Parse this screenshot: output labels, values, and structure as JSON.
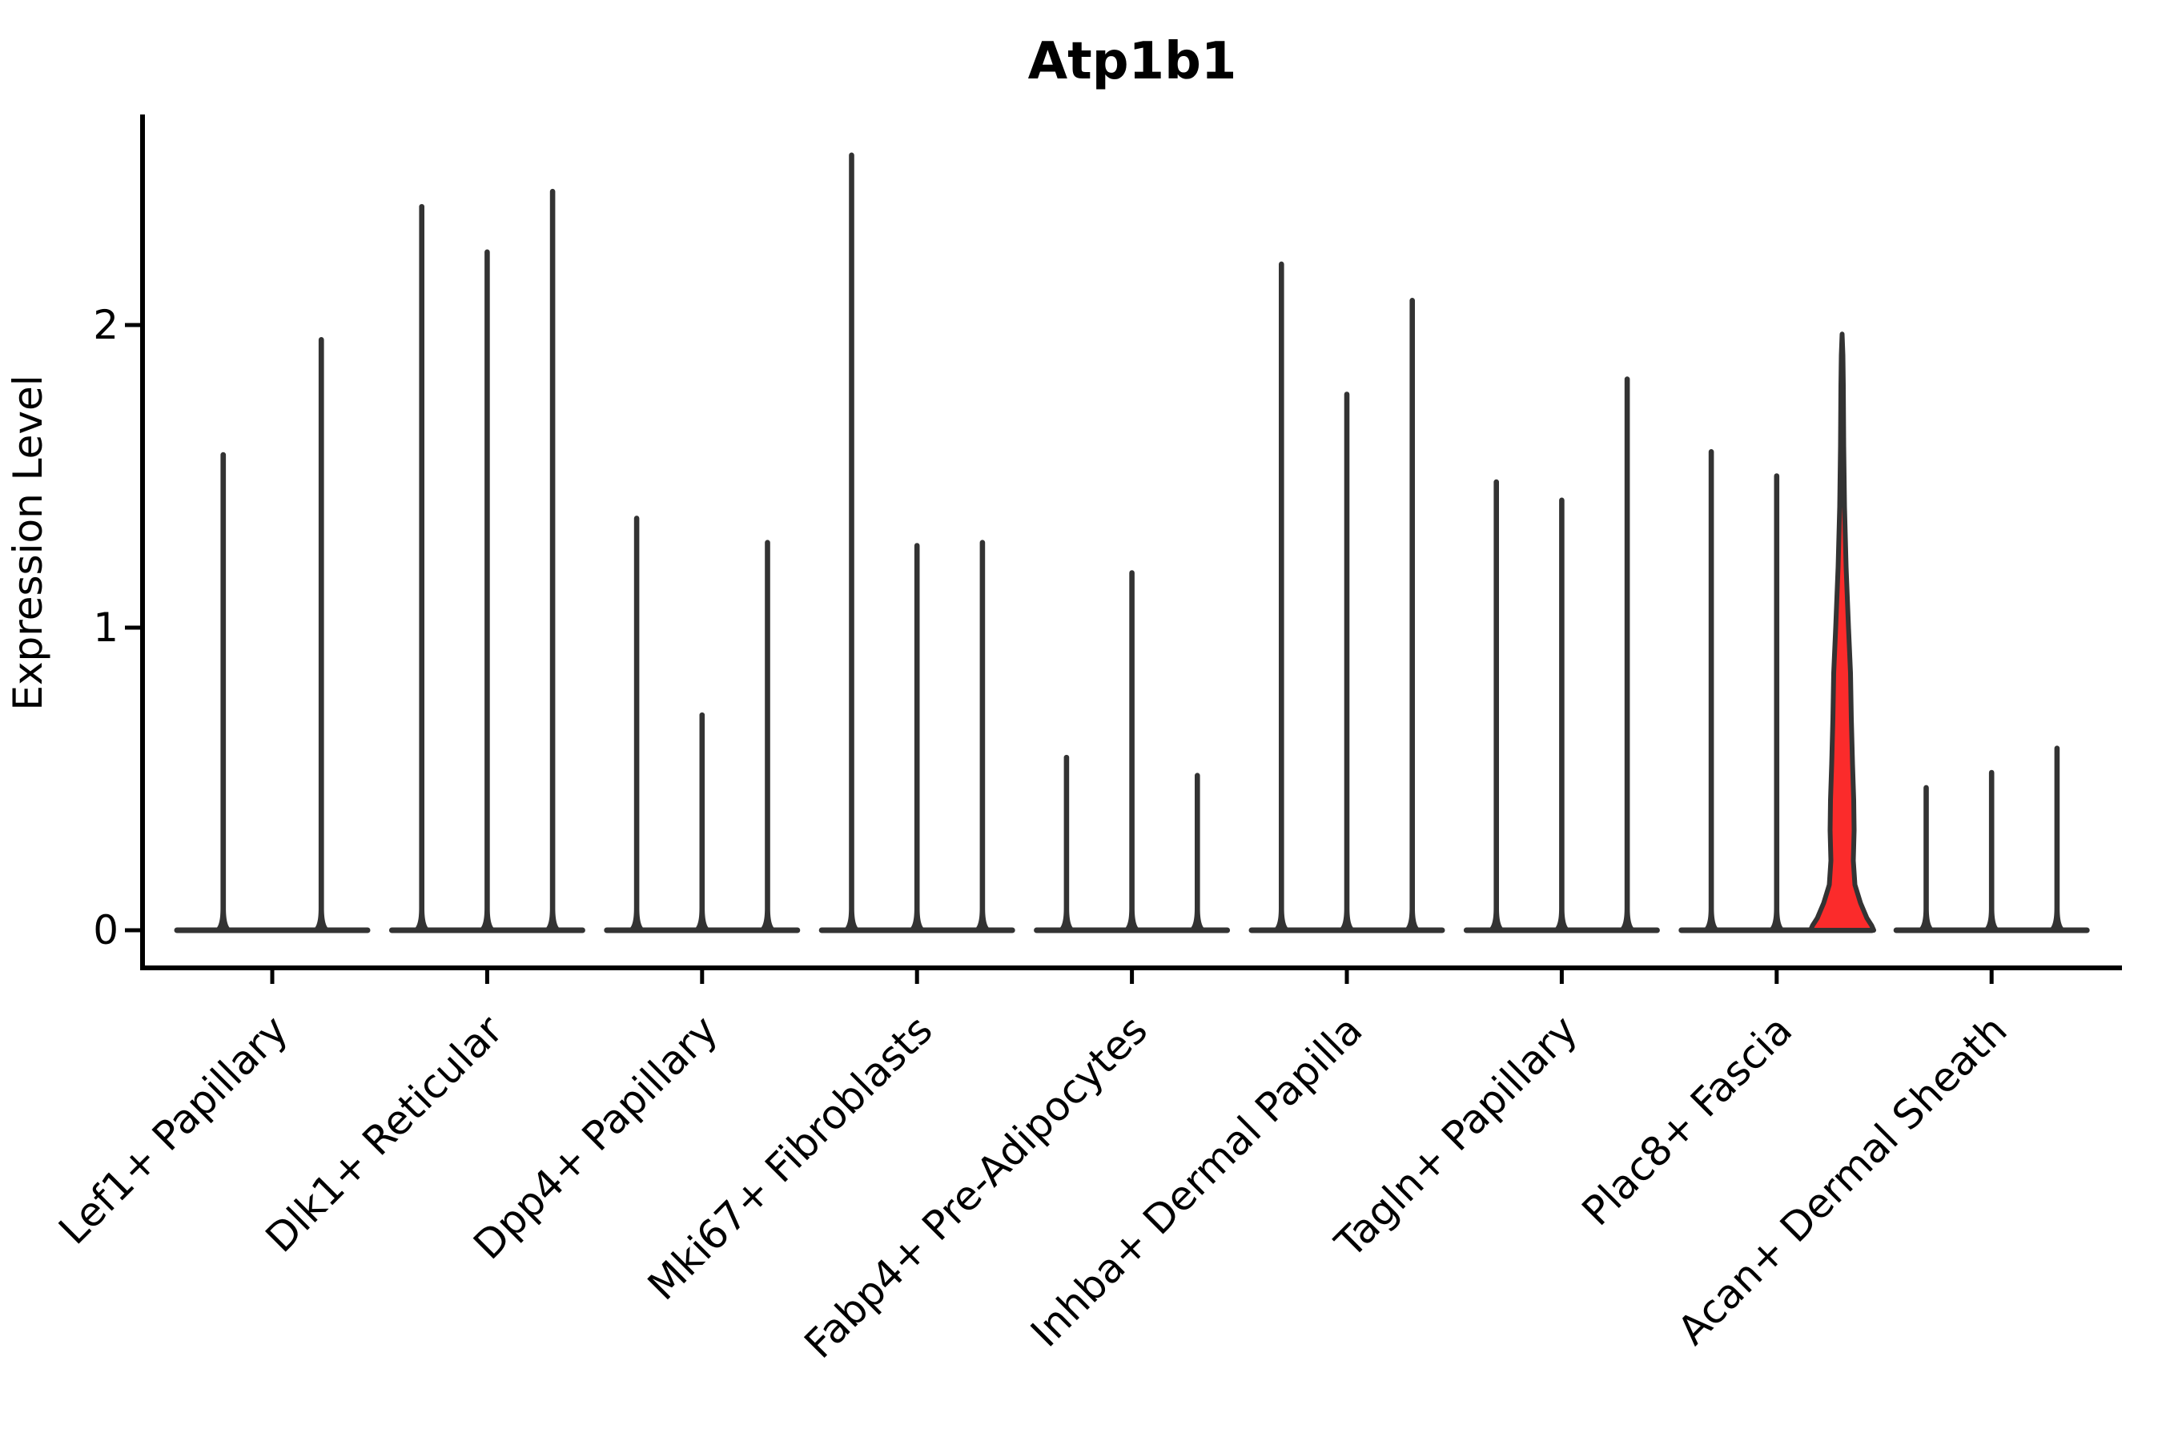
{
  "figure": {
    "title": "Atp1b1"
  },
  "axes": {
    "ylabel": "Expression Level",
    "ytick_labels": [
      "0",
      "1",
      "2"
    ]
  },
  "chart_data": {
    "type": "violin",
    "title": "Atp1b1",
    "ylabel": "Expression Level",
    "xlabel": "",
    "ytick_values": [
      0,
      1,
      2
    ],
    "ylim": [
      -0.13,
      2.71
    ],
    "grid": false,
    "legend": "none",
    "x_label_rotation_deg": 45,
    "description": "Grouped violin plot of Atp1b1 expression; each cell-type group shows thin spike-shaped violins (near-zero density bodies with tall maxima); one violin in Plac8+ Fascia is highlighted red with a wide density body.",
    "groups": [
      {
        "label": "Lef1+ Papillary",
        "violins": [
          {
            "max": 1.58
          },
          {
            "max": 1.96
          }
        ]
      },
      {
        "label": "Dlk1+ Reticular",
        "violins": [
          {
            "max": 2.4
          },
          {
            "max": 2.25
          },
          {
            "max": 2.45
          }
        ]
      },
      {
        "label": "Dpp4+ Papillary",
        "violins": [
          {
            "max": 1.37
          },
          {
            "max": 0.72
          },
          {
            "max": 1.29
          }
        ]
      },
      {
        "label": "Mki67+ Fibroblasts",
        "violins": [
          {
            "max": 2.57
          },
          {
            "max": 1.28
          },
          {
            "max": 1.29
          }
        ]
      },
      {
        "label": "Fabp4+ Pre-Adipocytes",
        "violins": [
          {
            "max": 0.58
          },
          {
            "max": 1.19
          },
          {
            "max": 0.52
          }
        ]
      },
      {
        "label": "Inhba+ Dermal Papilla",
        "violins": [
          {
            "max": 2.21
          },
          {
            "max": 1.78
          },
          {
            "max": 2.09
          }
        ]
      },
      {
        "label": "Tagln+ Papillary",
        "violins": [
          {
            "max": 1.49
          },
          {
            "max": 1.43
          },
          {
            "max": 1.83
          }
        ]
      },
      {
        "label": "Plac8+ Fascia",
        "violins": [
          {
            "max": 1.59
          },
          {
            "max": 1.51
          },
          {
            "max": 1.97,
            "highlighted": true
          }
        ]
      },
      {
        "label": "Acan+ Dermal Sheath",
        "violins": [
          {
            "max": 0.48
          },
          {
            "max": 0.53
          },
          {
            "max": 0.61
          }
        ]
      }
    ],
    "highlight": {
      "group_label": "Plac8+ Fascia",
      "violin_index": 2,
      "max": 1.97,
      "fill": "#fb2b2b",
      "profile": [
        [
          1.97,
          0.0
        ],
        [
          1.9,
          1.0
        ],
        [
          1.8,
          1.5
        ],
        [
          1.6,
          2.0
        ],
        [
          1.4,
          3.0
        ],
        [
          1.2,
          5.0
        ],
        [
          1.0,
          8.0
        ],
        [
          0.85,
          10.5
        ],
        [
          0.7,
          11.5
        ],
        [
          0.55,
          13.0
        ],
        [
          0.43,
          14.5
        ],
        [
          0.33,
          15.0
        ],
        [
          0.23,
          14.0
        ],
        [
          0.15,
          16.0
        ],
        [
          0.09,
          23.0
        ],
        [
          0.04,
          31.0
        ],
        [
          0.015,
          37.0
        ],
        [
          0.0,
          39.5
        ]
      ]
    },
    "colors": {
      "violin_edge": "#333333",
      "highlight_fill": "#fb2b2b",
      "axis": "#000000",
      "text": "#000000",
      "background": "#ffffff"
    }
  }
}
